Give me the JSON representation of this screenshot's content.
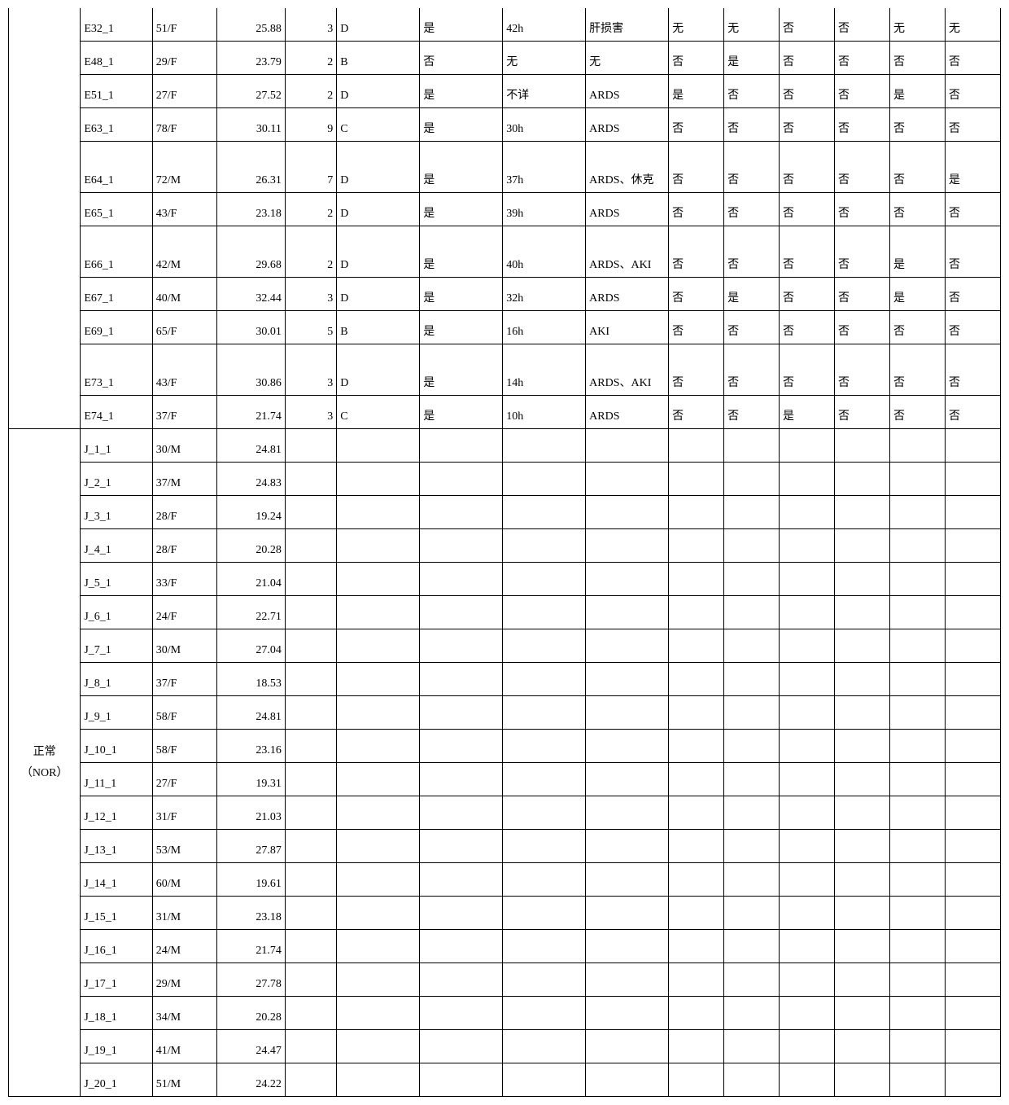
{
  "section1": {
    "rows": [
      {
        "c1": "E32_1",
        "c2": "51/F",
        "c3": "25.88",
        "c4": "3",
        "c5": "D",
        "c6": "是",
        "c7": "42h",
        "c8": "肝损害",
        "c9": "无",
        "c10": "无",
        "c11": "否",
        "c12": "否",
        "c13": "无",
        "c14": "无",
        "tall": false
      },
      {
        "c1": "E48_1",
        "c2": "29/F",
        "c3": "23.79",
        "c4": "2",
        "c5": "B",
        "c6": "否",
        "c7": "无",
        "c8": "无",
        "c9": "否",
        "c10": "是",
        "c11": "否",
        "c12": "否",
        "c13": "否",
        "c14": "否",
        "tall": false
      },
      {
        "c1": "E51_1",
        "c2": "27/F",
        "c3": "27.52",
        "c4": "2",
        "c5": "D",
        "c6": "是",
        "c7": "不详",
        "c8": "ARDS",
        "c9": "是",
        "c10": "否",
        "c11": "否",
        "c12": "否",
        "c13": "是",
        "c14": "否",
        "tall": false
      },
      {
        "c1": "E63_1",
        "c2": "78/F",
        "c3": "30.11",
        "c4": "9",
        "c5": "C",
        "c6": "是",
        "c7": "30h",
        "c8": "ARDS",
        "c9": "否",
        "c10": "否",
        "c11": "否",
        "c12": "否",
        "c13": "否",
        "c14": "否",
        "tall": false
      },
      {
        "c1": "E64_1",
        "c2": "72/M",
        "c3": "26.31",
        "c4": "7",
        "c5": "D",
        "c6": "是",
        "c7": "37h",
        "c8": "ARDS、休克",
        "c9": "否",
        "c10": "否",
        "c11": "否",
        "c12": "否",
        "c13": "否",
        "c14": "是",
        "tall": true
      },
      {
        "c1": "E65_1",
        "c2": "43/F",
        "c3": "23.18",
        "c4": "2",
        "c5": "D",
        "c6": "是",
        "c7": "39h",
        "c8": "ARDS",
        "c9": "否",
        "c10": "否",
        "c11": "否",
        "c12": "否",
        "c13": "否",
        "c14": "否",
        "tall": false
      },
      {
        "c1": "E66_1",
        "c2": "42/M",
        "c3": "29.68",
        "c4": "2",
        "c5": "D",
        "c6": "是",
        "c7": "40h",
        "c8": "ARDS、AKI",
        "c9": "否",
        "c10": "否",
        "c11": "否",
        "c12": "否",
        "c13": "是",
        "c14": "否",
        "tall": true
      },
      {
        "c1": "E67_1",
        "c2": "40/M",
        "c3": "32.44",
        "c4": "3",
        "c5": "D",
        "c6": "是",
        "c7": "32h",
        "c8": "ARDS",
        "c9": "否",
        "c10": "是",
        "c11": "否",
        "c12": "否",
        "c13": "是",
        "c14": "否",
        "tall": false
      },
      {
        "c1": "E69_1",
        "c2": "65/F",
        "c3": "30.01",
        "c4": "5",
        "c5": "B",
        "c6": "是",
        "c7": "16h",
        "c8": "AKI",
        "c9": "否",
        "c10": "否",
        "c11": "否",
        "c12": "否",
        "c13": "否",
        "c14": "否",
        "tall": false
      },
      {
        "c1": "E73_1",
        "c2": "43/F",
        "c3": "30.86",
        "c4": "3",
        "c5": "D",
        "c6": "是",
        "c7": "14h",
        "c8": "ARDS、AKI",
        "c9": "否",
        "c10": "否",
        "c11": "否",
        "c12": "否",
        "c13": "否",
        "c14": "否",
        "tall": true
      },
      {
        "c1": "E74_1",
        "c2": "37/F",
        "c3": "21.74",
        "c4": "3",
        "c5": "C",
        "c6": "是",
        "c7": "10h",
        "c8": "ARDS",
        "c9": "否",
        "c10": "否",
        "c11": "是",
        "c12": "否",
        "c13": "否",
        "c14": "否",
        "tall": false
      }
    ]
  },
  "section2": {
    "label_line1": "正常",
    "label_line2": "（NOR）",
    "rows": [
      {
        "c1": "J_1_1",
        "c2": "30/M",
        "c3": "24.81"
      },
      {
        "c1": "J_2_1",
        "c2": "37/M",
        "c3": "24.83"
      },
      {
        "c1": "J_3_1",
        "c2": "28/F",
        "c3": "19.24"
      },
      {
        "c1": "J_4_1",
        "c2": "28/F",
        "c3": "20.28"
      },
      {
        "c1": "J_5_1",
        "c2": "33/F",
        "c3": "21.04"
      },
      {
        "c1": "J_6_1",
        "c2": "24/F",
        "c3": "22.71"
      },
      {
        "c1": "J_7_1",
        "c2": "30/M",
        "c3": "27.04"
      },
      {
        "c1": "J_8_1",
        "c2": "37/F",
        "c3": "18.53"
      },
      {
        "c1": "J_9_1",
        "c2": "58/F",
        "c3": "24.81"
      },
      {
        "c1": "J_10_1",
        "c2": "58/F",
        "c3": "23.16"
      },
      {
        "c1": "J_11_1",
        "c2": "27/F",
        "c3": "19.31"
      },
      {
        "c1": "J_12_1",
        "c2": "31/F",
        "c3": "21.03"
      },
      {
        "c1": "J_13_1",
        "c2": "53/M",
        "c3": "27.87"
      },
      {
        "c1": "J_14_1",
        "c2": "60/M",
        "c3": "19.61"
      },
      {
        "c1": "J_15_1",
        "c2": "31/M",
        "c3": "23.18"
      },
      {
        "c1": "J_16_1",
        "c2": "24/M",
        "c3": "21.74"
      },
      {
        "c1": "J_17_1",
        "c2": "29/M",
        "c3": "27.78"
      },
      {
        "c1": "J_18_1",
        "c2": "34/M",
        "c3": "20.28"
      },
      {
        "c1": "J_19_1",
        "c2": "41/M",
        "c3": "24.47"
      },
      {
        "c1": "J_20_1",
        "c2": "51/M",
        "c3": "24.22"
      }
    ]
  }
}
